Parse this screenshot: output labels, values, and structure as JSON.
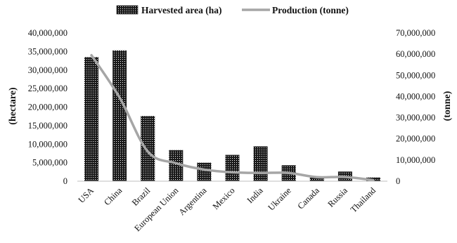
{
  "chart_data": {
    "type": "bar",
    "categories": [
      "USA",
      "China",
      "Brazil",
      "European Union",
      "Argentina",
      "Mexico",
      "India",
      "Ukraine",
      "Canada",
      "Russia",
      "Thailand"
    ],
    "series": [
      {
        "name": "Harvested area (ha)",
        "kind": "bar",
        "axis": "left",
        "values": [
          33500000,
          35300000,
          17600000,
          8400000,
          5000000,
          7100000,
          9400000,
          4300000,
          1000000,
          2600000,
          1000000
        ]
      },
      {
        "name": "Production (tonne)",
        "kind": "line",
        "axis": "right",
        "values": [
          59500000,
          39500000,
          14000000,
          8500000,
          5500000,
          4200000,
          3900000,
          3900000,
          1900000,
          2000000,
          500000
        ]
      }
    ],
    "ylabel": "(hectare)",
    "y2label": "(tonne)",
    "ylim": [
      0,
      40000000
    ],
    "y2lim": [
      0,
      70000000
    ],
    "yticks": [
      "0",
      "5,000,000",
      "10,000,000",
      "15,000,000",
      "20,000,000",
      "25,000,000",
      "30,000,000",
      "35,000,000",
      "40,000,000"
    ],
    "y2ticks": [
      "0",
      "10,000,000",
      "20,000,000",
      "30,000,000",
      "40,000,000",
      "50,000,000",
      "60,000,000",
      "70,000,000"
    ],
    "legend_position": "top",
    "grid": false,
    "colors": {
      "bar_fill": "#1a1a1a",
      "bar_dot": "#ffffff",
      "line": "#a6a6a6"
    }
  }
}
